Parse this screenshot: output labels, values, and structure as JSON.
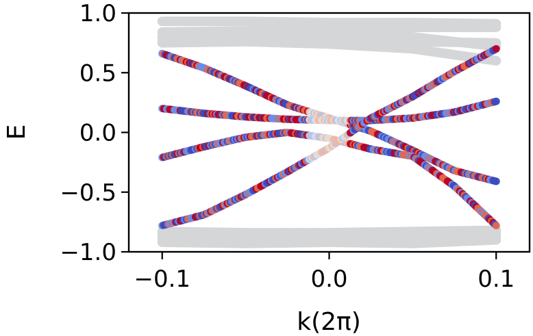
{
  "chart_data": {
    "type": "scatter",
    "title": "",
    "xlabel": "k(2π)",
    "ylabel": "E",
    "xlim": [
      -0.12,
      0.12
    ],
    "ylim": [
      -1.0,
      1.0
    ],
    "xticks": [
      -0.1,
      0.0,
      0.1
    ],
    "xtick_labels": [
      "−0.1",
      "0.0",
      "0.1"
    ],
    "yticks": [
      -1.0,
      -0.5,
      0.0,
      0.5,
      1.0
    ],
    "ytick_labels": [
      "−1.0",
      "−0.5",
      "0.0",
      "0.5",
      "1.0"
    ],
    "grid": false,
    "legend": "none",
    "colormap": [
      "#3b4cc0",
      "#6f8ce5",
      "#aec6f8",
      "#dddddd",
      "#f5b79a",
      "#e0684f",
      "#b40426"
    ],
    "bulk_color": "#d4d6d8",
    "bulk_bands": [
      {
        "name": "",
        "k": [
          -0.1,
          -0.05,
          0.0,
          0.05,
          0.1
        ],
        "E": [
          0.93,
          0.93,
          0.92,
          0.92,
          0.91
        ]
      },
      {
        "name": "",
        "k": [
          -0.1,
          -0.05,
          0.0,
          0.05,
          0.1
        ],
        "E": [
          0.84,
          0.85,
          0.87,
          0.88,
          0.88
        ]
      },
      {
        "name": "",
        "k": [
          -0.1,
          -0.05,
          0.0,
          0.05,
          0.1
        ],
        "E": [
          0.8,
          0.83,
          0.84,
          0.8,
          0.72
        ]
      },
      {
        "name": "",
        "k": [
          -0.1,
          -0.05,
          0.0,
          0.05,
          0.1
        ],
        "E": [
          0.77,
          0.78,
          0.79,
          0.76,
          0.75
        ]
      },
      {
        "name": "",
        "k": [
          -0.1,
          -0.05,
          0.0,
          0.05,
          0.1
        ],
        "E": [
          0.75,
          0.76,
          0.74,
          0.7,
          0.6
        ]
      },
      {
        "name": "",
        "k": [
          -0.1,
          -0.05,
          0.0,
          0.05,
          0.1
        ],
        "E": [
          -0.83,
          -0.84,
          -0.84,
          -0.83,
          -0.82
        ]
      },
      {
        "name": "",
        "k": [
          -0.1,
          -0.05,
          0.0,
          0.05,
          0.1
        ],
        "E": [
          -0.86,
          -0.87,
          -0.88,
          -0.87,
          -0.85
        ]
      },
      {
        "name": "",
        "k": [
          -0.1,
          -0.05,
          0.0,
          0.05,
          0.1
        ],
        "E": [
          -0.89,
          -0.9,
          -0.9,
          -0.9,
          -0.88
        ]
      },
      {
        "name": "",
        "k": [
          -0.1,
          -0.05,
          0.0,
          0.05,
          0.1
        ],
        "E": [
          -0.92,
          -0.93,
          -0.92,
          -0.93,
          -0.9
        ]
      }
    ],
    "edge_bands": [
      {
        "name": "",
        "k": [
          -0.1,
          -0.075,
          -0.05,
          -0.025,
          0.0,
          0.025,
          0.05,
          0.075,
          0.1
        ],
        "E": [
          0.66,
          0.54,
          0.39,
          0.23,
          0.12,
          0.01,
          -0.15,
          -0.32,
          -0.41
        ]
      },
      {
        "name": "",
        "k": [
          -0.1,
          -0.075,
          -0.05,
          -0.025,
          0.0,
          0.025,
          0.05,
          0.075,
          0.1
        ],
        "E": [
          0.2,
          0.16,
          0.13,
          0.11,
          0.1,
          0.1,
          0.12,
          0.17,
          0.26
        ]
      },
      {
        "name": "",
        "k": [
          -0.1,
          -0.075,
          -0.05,
          -0.025,
          0.0,
          0.025,
          0.05,
          0.075,
          0.1
        ],
        "E": [
          -0.21,
          -0.12,
          -0.04,
          0.0,
          -0.05,
          -0.14,
          -0.2,
          -0.45,
          -0.78
        ]
      },
      {
        "name": "",
        "k": [
          -0.1,
          -0.075,
          -0.05,
          -0.025,
          0.0,
          0.025,
          0.05,
          0.075,
          0.1
        ],
        "E": [
          -0.78,
          -0.69,
          -0.52,
          -0.33,
          -0.13,
          0.12,
          0.3,
          0.51,
          0.7
        ]
      }
    ]
  }
}
